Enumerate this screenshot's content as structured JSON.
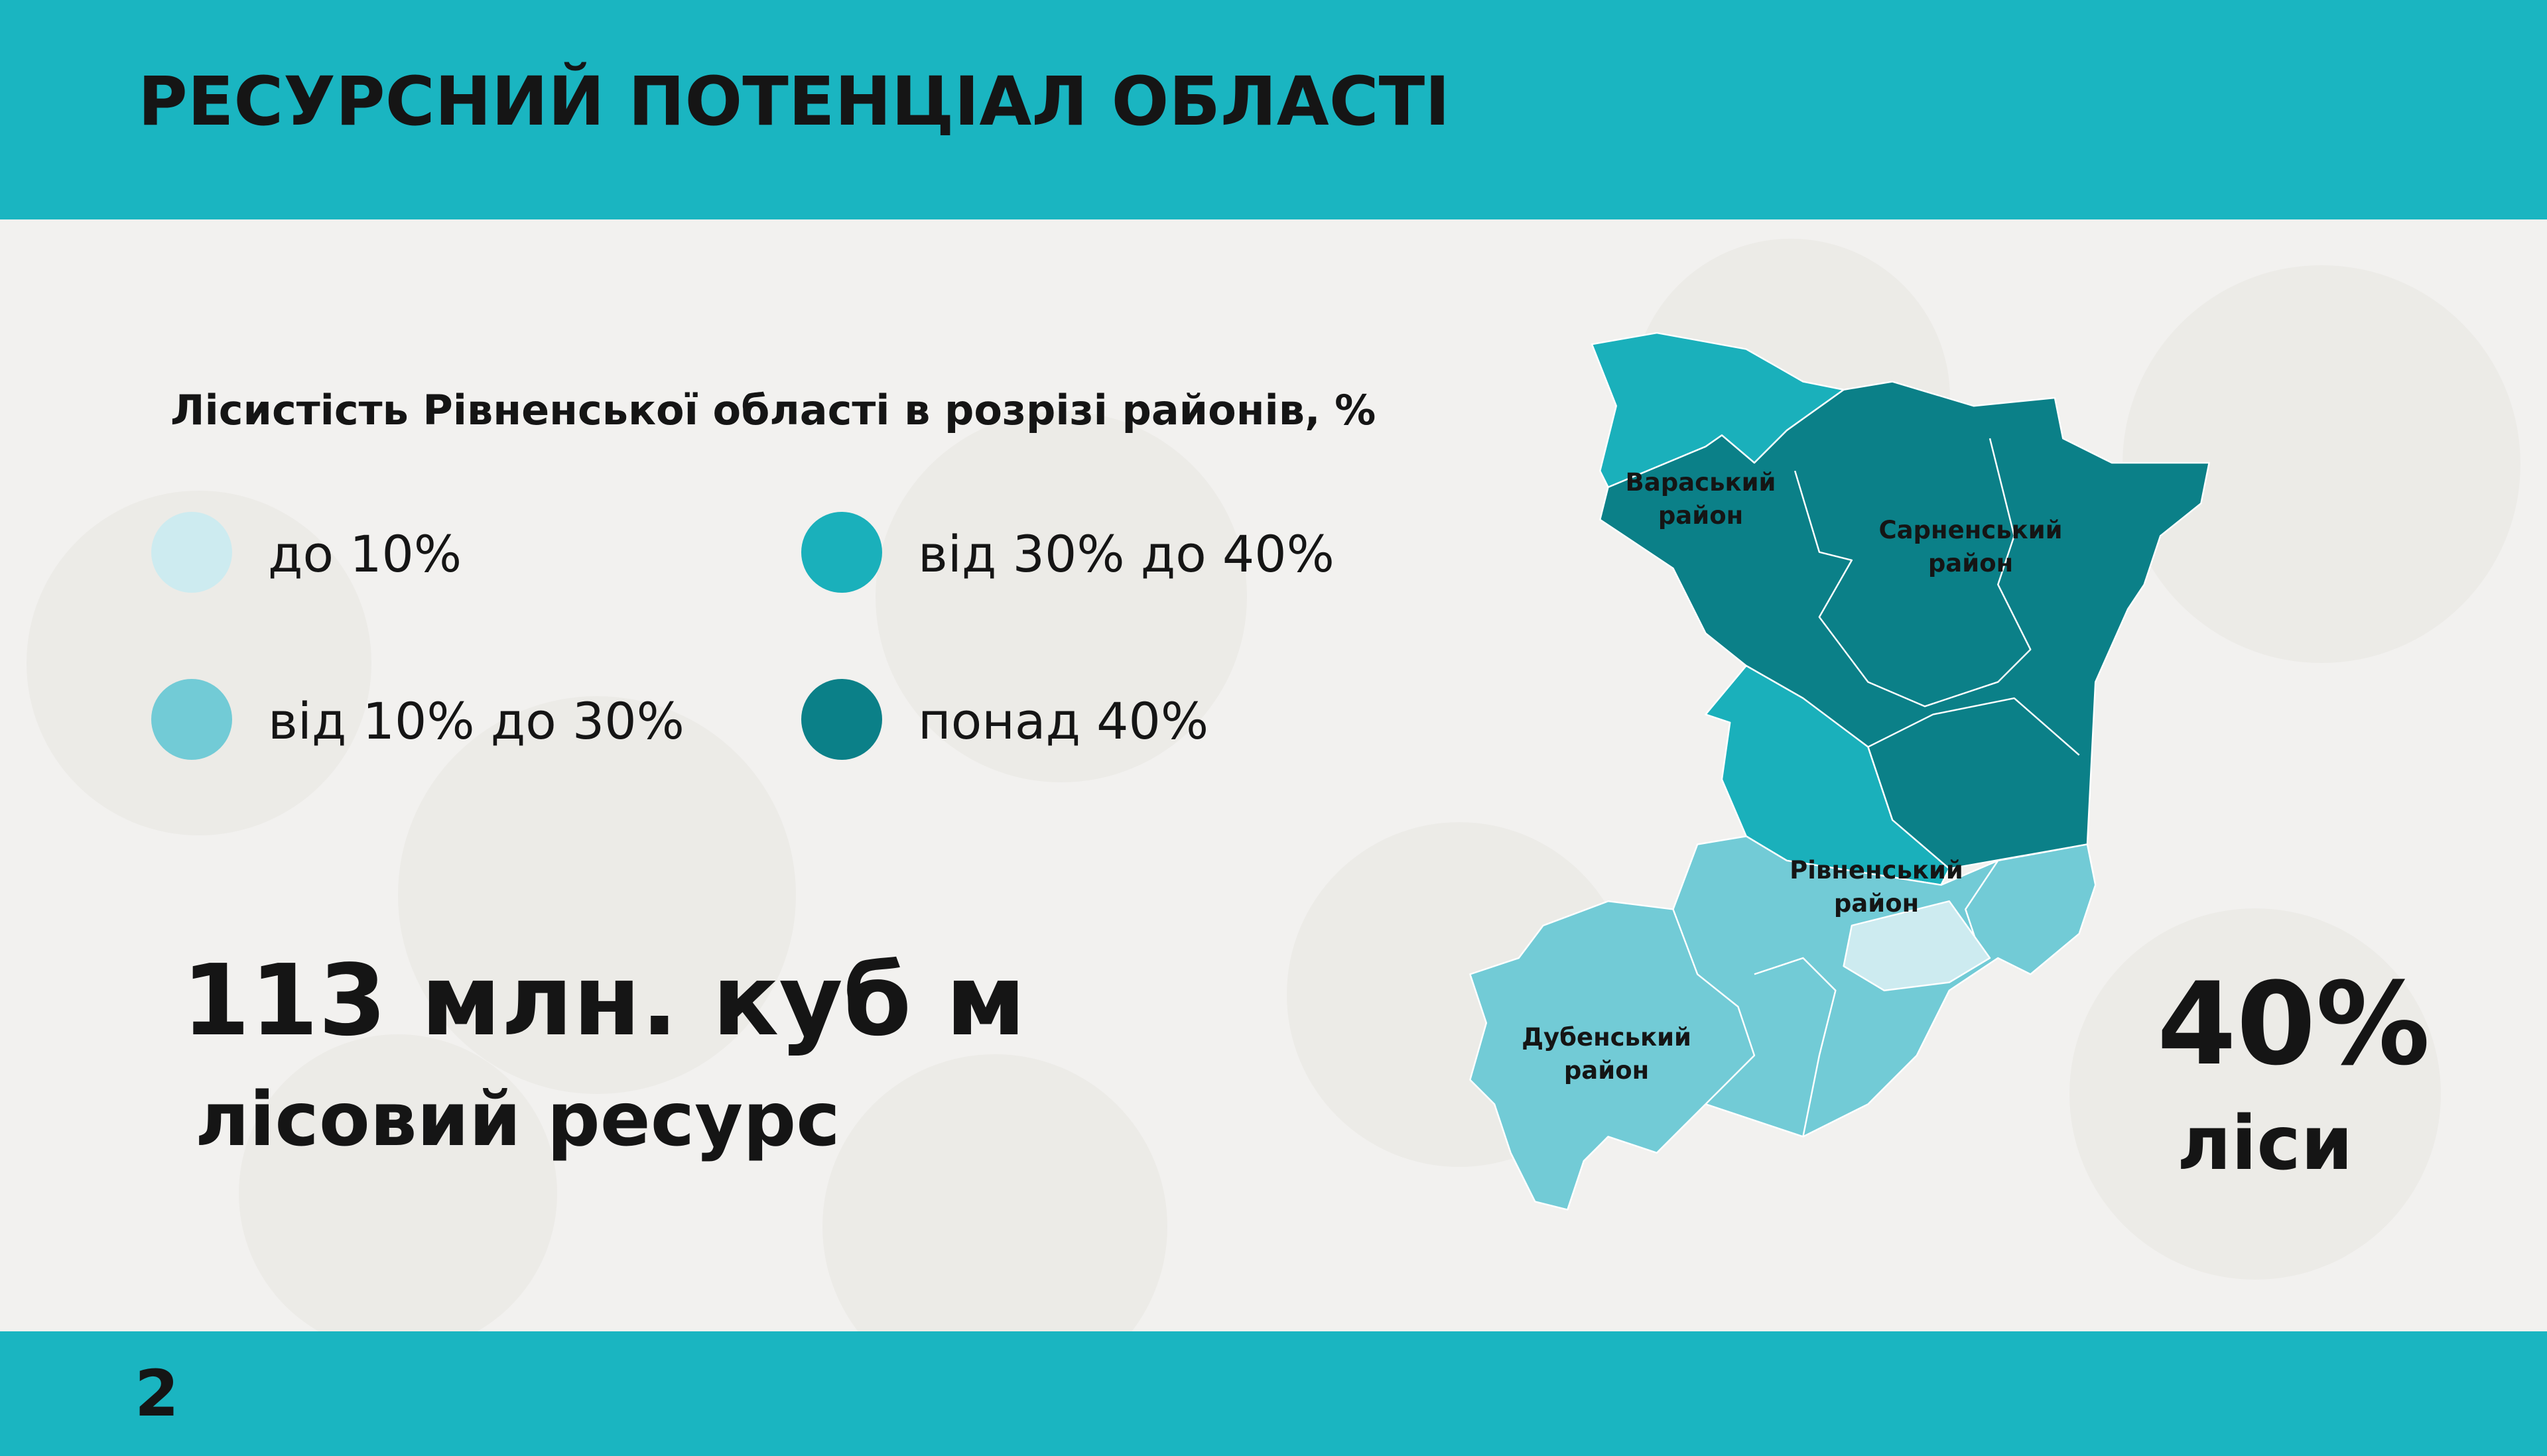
{
  "header": {
    "title": "РЕСУРСНИЙ ПОТЕНЦІАЛ ОБЛАСТІ"
  },
  "subtitle": "Лісистість Рівненської області в розрізі районів, %",
  "legend": {
    "items": [
      {
        "label": "до 10%",
        "color": "#cdebf0"
      },
      {
        "label": "від 10% до 30%",
        "color": "#72cbd6"
      },
      {
        "label": "від 30% до 40%",
        "color": "#1ab0bb"
      },
      {
        "label": "понад 40%",
        "color": "#0b8088"
      }
    ]
  },
  "stats": {
    "volume": {
      "value": "113 млн. куб м",
      "label": "лісовий ресурс"
    },
    "forest": {
      "value": "40%",
      "label": "ліси"
    }
  },
  "map": {
    "districts": [
      {
        "name": "Вараський",
        "unit": "район"
      },
      {
        "name": "Сарненський",
        "unit": "район"
      },
      {
        "name": "Рівненський",
        "unit": "район"
      },
      {
        "name": "Дубенський",
        "unit": "район"
      }
    ]
  },
  "footer": {
    "page_number": "2"
  }
}
